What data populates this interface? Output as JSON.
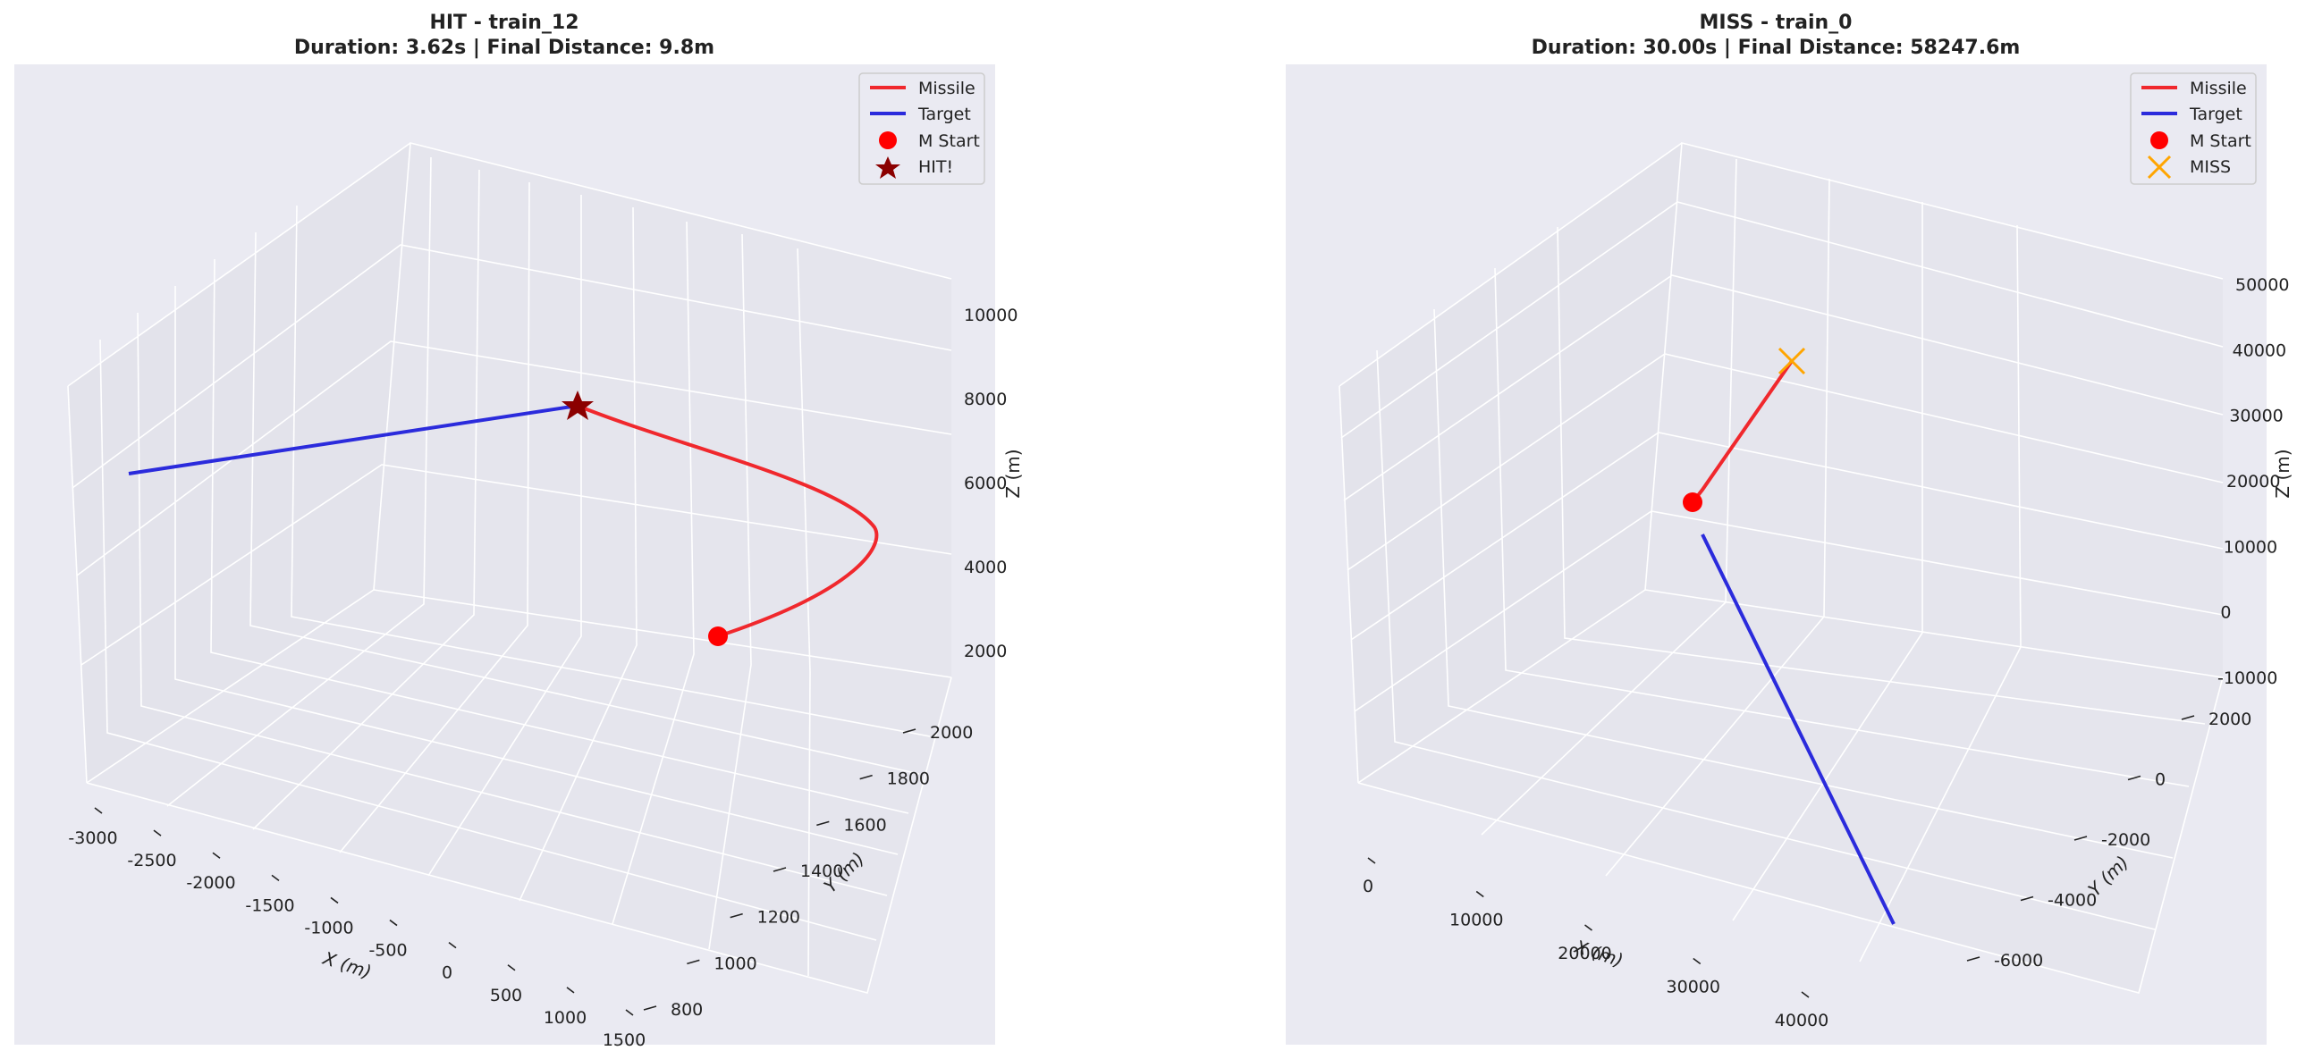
{
  "chart_data": [
    {
      "type": "line3d",
      "title_line1": "HIT - train_12",
      "title_line2": "Duration: 3.62s | Final Distance: 9.8m",
      "xlabel": "X (m)",
      "ylabel": "Y (m)",
      "zlabel": "Z (m)",
      "xlim": [
        -3000,
        1500
      ],
      "ylim": [
        800,
        2000
      ],
      "zlim": [
        2000,
        10000
      ],
      "x_ticks": [
        "-3000",
        "-2500",
        "-2000",
        "-1500",
        "-1000",
        "-500",
        "0",
        "500",
        "1000",
        "1500"
      ],
      "y_ticks": [
        "800",
        "1000",
        "1200",
        "1400",
        "1600",
        "1800",
        "2000"
      ],
      "z_ticks": [
        "2000",
        "4000",
        "6000",
        "8000",
        "10000"
      ],
      "legend": [
        {
          "label": "Missile",
          "kind": "line",
          "color": "#f0282d"
        },
        {
          "label": "Target",
          "kind": "line",
          "color": "#2b2bdc"
        },
        {
          "label": "M Start",
          "kind": "circle",
          "color": "#ff0000"
        },
        {
          "label": "HIT!",
          "kind": "star",
          "color": "#8b0000"
        }
      ],
      "series": [
        {
          "name": "Missile",
          "color": "#f0282d",
          "points": [
            [
              500,
              1400,
              2000
            ],
            [
              1500,
              1600,
              3000
            ],
            [
              2000,
              1800,
              4500
            ],
            [
              1200,
              1900,
              6500
            ],
            [
              -200,
              1900,
              8000
            ]
          ]
        },
        {
          "name": "Target",
          "color": "#2b2bdc",
          "points": [
            [
              -3000,
              1500,
              9000
            ],
            [
              -200,
              1900,
              8000
            ]
          ]
        }
      ],
      "markers": [
        {
          "name": "M Start",
          "shape": "circle",
          "color": "#ff0000",
          "point": [
            500,
            1400,
            2000
          ]
        },
        {
          "name": "HIT!",
          "shape": "star",
          "color": "#8b0000",
          "point": [
            -200,
            1900,
            8000
          ]
        }
      ]
    },
    {
      "type": "line3d",
      "title_line1": "MISS - train_0",
      "title_line2": "Duration: 30.00s | Final Distance: 58247.6m",
      "xlabel": "X (m)",
      "ylabel": "Y (m)",
      "zlabel": "Z (m)",
      "xlim": [
        0,
        45000
      ],
      "ylim": [
        -7000,
        3000
      ],
      "zlim": [
        -10000,
        50000
      ],
      "x_ticks": [
        "0",
        "10000",
        "20000",
        "30000",
        "40000"
      ],
      "y_ticks": [
        "-6000",
        "-4000",
        "-2000",
        "0",
        "2000"
      ],
      "z_ticks": [
        "-10000",
        "0",
        "10000",
        "20000",
        "30000",
        "40000",
        "50000"
      ],
      "legend": [
        {
          "label": "Missile",
          "kind": "line",
          "color": "#f0282d"
        },
        {
          "label": "Target",
          "kind": "line",
          "color": "#2b2bdc"
        },
        {
          "label": "M Start",
          "kind": "circle",
          "color": "#ff0000"
        },
        {
          "label": "MISS",
          "kind": "x",
          "color": "#ffa500"
        }
      ],
      "series": [
        {
          "name": "Missile",
          "color": "#f0282d",
          "points": [
            [
              5000,
              2000,
              20000
            ],
            [
              9000,
              3000,
              40000
            ]
          ]
        },
        {
          "name": "Target",
          "color": "#2b2bdc",
          "points": [
            [
              6000,
              1500,
              14000
            ],
            [
              40000,
              -7000,
              -10000
            ]
          ]
        }
      ],
      "markers": [
        {
          "name": "M Start",
          "shape": "circle",
          "color": "#ff0000",
          "point": [
            5000,
            2000,
            20000
          ]
        },
        {
          "name": "MISS",
          "shape": "x",
          "color": "#ffa500",
          "point": [
            9000,
            3000,
            40000
          ]
        }
      ]
    }
  ]
}
